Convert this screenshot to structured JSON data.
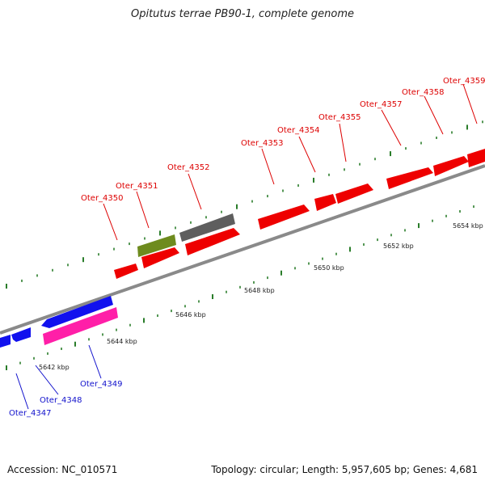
{
  "title": "Opitutus terrae PB90-1, complete genome",
  "accession_label": "Accession: NC_010571",
  "summary": "Topology: circular; Length: 5,957,605 bp; Genes: 4,681",
  "colors": {
    "forward": "#ee0000",
    "reverse": "#1111ee",
    "pink": "#ff1fa8",
    "olive": "#6e8b1e",
    "gray": "#5e5e5e",
    "backbone": "#8a8a8a",
    "tick": "#2a7d2a",
    "label_forward": "#dd0000",
    "label_reverse": "#1111cc"
  },
  "scale_labels": [
    "5642 kbp",
    "5644 kbp",
    "5646 kbp",
    "5648 kbp",
    "5650 kbp",
    "5652 kbp",
    "5654 kbp"
  ],
  "gene_labels_forward": [
    "Oter_4350",
    "Oter_4351",
    "Oter_4352",
    "Oter_4353",
    "Oter_4354",
    "Oter_4355",
    "Oter_4357",
    "Oter_4358",
    "Oter_4359"
  ],
  "gene_labels_reverse": [
    "Oter_4347",
    "Oter_4348",
    "Oter_4349"
  ]
}
